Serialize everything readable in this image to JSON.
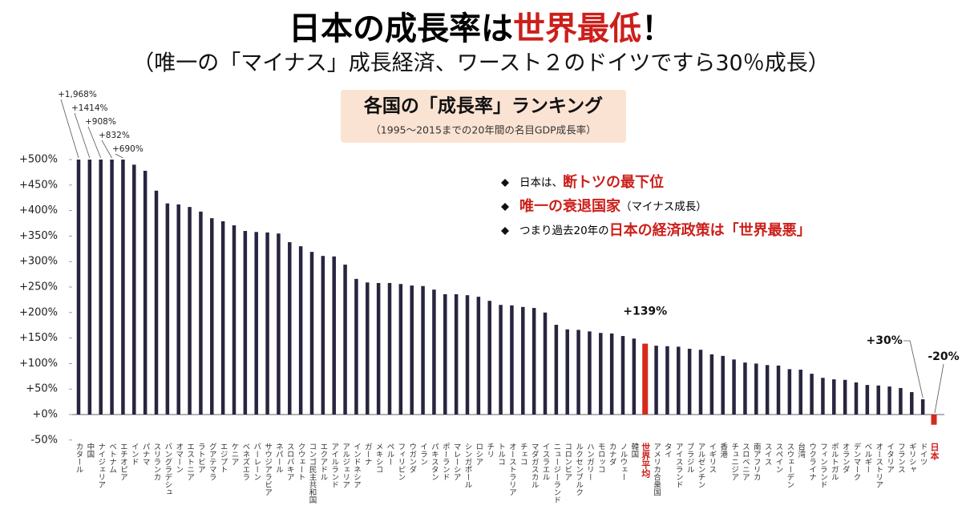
{
  "chart_data": {
    "type": "bar",
    "title_parts": [
      {
        "text": "日本の成長率は",
        "color": "#000000"
      },
      {
        "text": "世界最低",
        "color": "#cc1f1a"
      },
      {
        "text": "！",
        "color": "#000000"
      }
    ],
    "subtitle": "（唯一の「マイナス」成長経済、ワースト２のドイツですら30％成長）",
    "box_title": "各国の「成長率」ランキング",
    "box_subtitle": "（1995〜2015までの20年間の名目GDP成長率）",
    "annotations": [
      [
        {
          "text": "日本は、",
          "color": "#000000"
        },
        {
          "text": "断トツの最下位",
          "color": "#cc1f1a"
        }
      ],
      [
        {
          "text": "唯一の衰退国家",
          "color": "#cc1f1a"
        },
        {
          "text": "（マイナス成長）",
          "color": "#000000"
        }
      ],
      [
        {
          "text": "つまり過去20年の",
          "color": "#000000"
        },
        {
          "text": "日本の経済政策は「世界最悪」",
          "color": "#cc1f1a"
        }
      ]
    ],
    "categories": [
      "カタール",
      "中国",
      "ナイジェリア",
      "ベトナム",
      "エチオピア",
      "インド",
      "パナマ",
      "スリランカ",
      "バングラデシュ",
      "オマーン",
      "エストニア",
      "ラトビア",
      "グアテマラ",
      "エジプト",
      "ケニア",
      "ベネズエラ",
      "バーレーン",
      "サウジアラビア",
      "ネパール",
      "スロバキア",
      "クウェート",
      "コンゴ民主共和国",
      "エクアドル",
      "アイルランド",
      "アルジェリア",
      "インドネシア",
      "ガーナ",
      "メキシコ",
      "ペルー",
      "フィリピン",
      "ウガンダ",
      "イラン",
      "パキスタン",
      "ポーランド",
      "マレーシア",
      "シンガポール",
      "ロシア",
      "チリ",
      "トルコ",
      "オーストラリア",
      "チェコ",
      "マダガスカル",
      "イスラエル",
      "ニュージーランド",
      "コロンビア",
      "ルクセンブルク",
      "ハンガリー",
      "モロッコ",
      "カナダ",
      "ノルウェー",
      "韓国",
      "世界平均",
      "アメリカ合衆国",
      "タイ",
      "アイスランド",
      "ブラジル",
      "アルゼンチン",
      "イギリス",
      "香港",
      "チュニジア",
      "スロベニア",
      "南アフリカ",
      "スイス",
      "スペイン",
      "スウェーデン",
      "台湾",
      "ウクライナ",
      "フィンランド",
      "ポルトガル",
      "オランダ",
      "デンマーク",
      "ベルギー",
      "オーストリア",
      "イタリア",
      "フランス",
      "ギリシャ",
      "ドイツ",
      "日本"
    ],
    "values": [
      1968,
      1414,
      908,
      832,
      690,
      490,
      478,
      439,
      414,
      412,
      407,
      398,
      385,
      379,
      371,
      360,
      358,
      357,
      355,
      338,
      330,
      319,
      311,
      310,
      294,
      266,
      259,
      258,
      258,
      256,
      253,
      252,
      245,
      236,
      236,
      234,
      231,
      223,
      215,
      214,
      211,
      209,
      200,
      176,
      167,
      166,
      163,
      160,
      159,
      154,
      149,
      139,
      135,
      134,
      133,
      129,
      127,
      118,
      115,
      108,
      102,
      100,
      97,
      96,
      89,
      88,
      80,
      72,
      69,
      68,
      63,
      58,
      57,
      55,
      52,
      44,
      30,
      -20
    ],
    "value_labels": [
      "+1,968%",
      "+1414%",
      "+908%",
      "+832%",
      "+690%",
      null,
      null,
      null,
      null,
      null,
      null,
      null,
      null,
      null,
      null,
      null,
      null,
      null,
      null,
      null,
      null,
      null,
      null,
      null,
      null,
      null,
      null,
      null,
      null,
      null,
      null,
      null,
      null,
      null,
      null,
      null,
      null,
      null,
      null,
      null,
      null,
      null,
      null,
      null,
      null,
      null,
      null,
      null,
      null,
      null,
      null,
      "+139%",
      null,
      null,
      null,
      null,
      null,
      null,
      null,
      null,
      null,
      null,
      null,
      null,
      null,
      null,
      null,
      null,
      null,
      null,
      null,
      null,
      null,
      null,
      null,
      null,
      "+30%",
      "-20%"
    ],
    "colors": [
      "#29243f",
      "#29243f",
      "#29243f",
      "#29243f",
      "#29243f",
      "#29243f",
      "#29243f",
      "#29243f",
      "#29243f",
      "#29243f",
      "#29243f",
      "#29243f",
      "#29243f",
      "#29243f",
      "#29243f",
      "#29243f",
      "#29243f",
      "#29243f",
      "#29243f",
      "#29243f",
      "#29243f",
      "#29243f",
      "#29243f",
      "#29243f",
      "#29243f",
      "#29243f",
      "#29243f",
      "#29243f",
      "#29243f",
      "#29243f",
      "#29243f",
      "#29243f",
      "#29243f",
      "#29243f",
      "#29243f",
      "#29243f",
      "#29243f",
      "#29243f",
      "#29243f",
      "#29243f",
      "#29243f",
      "#29243f",
      "#29243f",
      "#29243f",
      "#29243f",
      "#29243f",
      "#29243f",
      "#29243f",
      "#29243f",
      "#29243f",
      "#29243f",
      "#d42a1c",
      "#29243f",
      "#29243f",
      "#29243f",
      "#29243f",
      "#29243f",
      "#29243f",
      "#29243f",
      "#29243f",
      "#29243f",
      "#29243f",
      "#29243f",
      "#29243f",
      "#29243f",
      "#29243f",
      "#29243f",
      "#29243f",
      "#29243f",
      "#29243f",
      "#29243f",
      "#29243f",
      "#29243f",
      "#29243f",
      "#29243f",
      "#29243f",
      "#29243f",
      "#d42a1c"
    ],
    "ylim": [
      -50,
      500
    ],
    "yticks": [
      {
        "value": -50,
        "label": "-50%"
      },
      {
        "value": 0,
        "label": "+0%"
      },
      {
        "value": 50,
        "label": "+50%"
      },
      {
        "value": 100,
        "label": "+100%"
      },
      {
        "value": 150,
        "label": "+150%"
      },
      {
        "value": 200,
        "label": "+200%"
      },
      {
        "value": 250,
        "label": "+250%"
      },
      {
        "value": 300,
        "label": "+300%"
      },
      {
        "value": 350,
        "label": "+350%"
      },
      {
        "value": 400,
        "label": "+400%"
      },
      {
        "value": 450,
        "label": "+450%"
      },
      {
        "value": 500,
        "label": "+500%"
      }
    ],
    "grid": false
  }
}
